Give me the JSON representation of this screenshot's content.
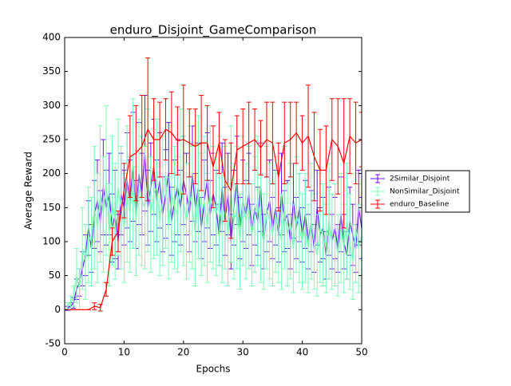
{
  "chart_data": {
    "type": "errorbar-line",
    "title": "enduro_Disjoint_GameComparison",
    "x_label": "Epochs",
    "y_label": "Average Reward",
    "xlim": [
      0,
      50
    ],
    "xticks": [
      0,
      10,
      20,
      30,
      40,
      50
    ],
    "ylim": [
      -50,
      400
    ],
    "yticks": [
      -50,
      0,
      50,
      100,
      150,
      200,
      250,
      300,
      350,
      400
    ],
    "grid": false,
    "legend_position": "right",
    "series": [
      {
        "name": "2Similar_Disjoint",
        "color": "#6a10f0",
        "x": [
          0.5,
          1,
          1.5,
          2,
          2.5,
          3,
          3.5,
          4,
          4.5,
          5,
          5.5,
          6,
          6.5,
          7,
          7.5,
          8,
          8.5,
          9,
          9.5,
          10,
          10.5,
          11,
          11.5,
          12,
          12.5,
          13,
          13.5,
          14,
          14.5,
          15,
          15.5,
          16,
          16.5,
          17,
          17.5,
          18,
          18.5,
          19,
          19.5,
          20,
          20.5,
          21,
          21.5,
          22,
          22.5,
          23,
          23.5,
          24,
          24.5,
          25,
          25.5,
          26,
          26.5,
          27,
          27.5,
          28,
          28.5,
          29,
          29.5,
          30,
          30.5,
          31,
          31.5,
          32,
          32.5,
          33,
          33.5,
          34,
          34.5,
          35,
          35.5,
          36,
          36.5,
          37,
          37.5,
          38,
          38.5,
          39,
          39.5,
          40,
          40.5,
          41,
          41.5,
          42,
          42.5,
          43,
          43.5,
          44,
          44.5,
          45,
          45.5,
          46,
          46.5,
          47,
          47.5,
          48,
          48.5,
          49,
          49.5,
          50
        ],
        "values": [
          2,
          5,
          10,
          30,
          40,
          60,
          80,
          120,
          90,
          140,
          160,
          130,
          180,
          150,
          170,
          120,
          140,
          100,
          170,
          150,
          190,
          160,
          210,
          140,
          200,
          170,
          230,
          150,
          180,
          210,
          160,
          190,
          140,
          170,
          200,
          130,
          160,
          180,
          150,
          190,
          170,
          140,
          200,
          150,
          180,
          120,
          160,
          190,
          140,
          170,
          150,
          110,
          180,
          130,
          170,
          100,
          150,
          190,
          120,
          160,
          140,
          170,
          110,
          150,
          130,
          180,
          100,
          140,
          160,
          120,
          150,
          110,
          170,
          130,
          140,
          100,
          160,
          120,
          150,
          110,
          140,
          100,
          130,
          90,
          150,
          110,
          120,
          80,
          130,
          100,
          120,
          90,
          140,
          100,
          80,
          130,
          110,
          90,
          150,
          120
        ],
        "errors": [
          3,
          5,
          8,
          15,
          20,
          25,
          30,
          40,
          35,
          50,
          60,
          45,
          70,
          55,
          60,
          50,
          65,
          40,
          60,
          55,
          70,
          60,
          80,
          50,
          75,
          60,
          85,
          55,
          65,
          70,
          60,
          70,
          55,
          65,
          75,
          50,
          60,
          70,
          55,
          65,
          60,
          55,
          70,
          50,
          65,
          45,
          60,
          70,
          50,
          60,
          55,
          45,
          65,
          50,
          60,
          40,
          55,
          65,
          45,
          60,
          50,
          60,
          45,
          55,
          50,
          65,
          40,
          55,
          60,
          45,
          55,
          40,
          60,
          45,
          50,
          40,
          55,
          45,
          50,
          40,
          50,
          40,
          45,
          35,
          55,
          40,
          45,
          35,
          50,
          40,
          45,
          35,
          55,
          40,
          35,
          50,
          45,
          35,
          55,
          45
        ]
      },
      {
        "name": "NonSimilar_Disjoint",
        "color": "#7dffb4",
        "x": [
          0.5,
          1,
          1.5,
          2,
          2.5,
          3,
          3.5,
          4,
          4.5,
          5,
          5.5,
          6,
          6.5,
          7,
          7.5,
          8,
          8.5,
          9,
          9.5,
          10,
          10.5,
          11,
          11.5,
          12,
          12.5,
          13,
          13.5,
          14,
          14.5,
          15,
          15.5,
          16,
          16.5,
          17,
          17.5,
          18,
          18.5,
          19,
          19.5,
          20,
          20.5,
          21,
          21.5,
          22,
          22.5,
          23,
          23.5,
          24,
          24.5,
          25,
          25.5,
          26,
          26.5,
          27,
          27.5,
          28,
          28.5,
          29,
          29.5,
          30,
          30.5,
          31,
          31.5,
          32,
          32.5,
          33,
          33.5,
          34,
          34.5,
          35,
          35.5,
          36,
          36.5,
          37,
          37.5,
          38,
          38.5,
          39,
          39.5,
          40,
          40.5,
          41,
          41.5,
          42,
          42.5,
          43,
          43.5,
          44,
          44.5,
          45,
          45.5,
          46,
          46.5,
          47,
          47.5,
          48,
          48.5,
          49,
          49.5,
          50
        ],
        "values": [
          5,
          10,
          20,
          50,
          30,
          90,
          70,
          110,
          100,
          150,
          120,
          170,
          140,
          190,
          110,
          160,
          130,
          180,
          150,
          120,
          170,
          140,
          200,
          130,
          180,
          160,
          150,
          190,
          140,
          170,
          180,
          130,
          160,
          200,
          120,
          170,
          150,
          140,
          190,
          160,
          130,
          170,
          150,
          110,
          180,
          140,
          160,
          120,
          170,
          150,
          140,
          160,
          120,
          150,
          110,
          170,
          130,
          150,
          100,
          160,
          130,
          150,
          110,
          140,
          160,
          120,
          100,
          150,
          130,
          110,
          140,
          120,
          100,
          150,
          110,
          130,
          90,
          140,
          120,
          100,
          120,
          90,
          130,
          100,
          80,
          120,
          110,
          90,
          130,
          100,
          110,
          80,
          120,
          90,
          130,
          100,
          70,
          120,
          90,
          110
        ],
        "errors": [
          5,
          10,
          15,
          40,
          30,
          60,
          55,
          70,
          65,
          90,
          80,
          100,
          85,
          110,
          75,
          95,
          85,
          100,
          90,
          80,
          100,
          85,
          110,
          80,
          100,
          95,
          90,
          105,
          85,
          95,
          100,
          80,
          95,
          110,
          75,
          100,
          90,
          85,
          105,
          95,
          85,
          100,
          90,
          75,
          105,
          90,
          95,
          80,
          100,
          90,
          90,
          95,
          80,
          90,
          75,
          100,
          85,
          90,
          70,
          95,
          85,
          90,
          75,
          85,
          95,
          80,
          70,
          90,
          85,
          75,
          85,
          80,
          70,
          90,
          75,
          85,
          65,
          85,
          80,
          70,
          80,
          65,
          85,
          70,
          60,
          80,
          75,
          65,
          85,
          70,
          75,
          60,
          80,
          65,
          85,
          70,
          55,
          80,
          65,
          75
        ]
      },
      {
        "name": "enduro_Baseline",
        "color": "#ff0000",
        "x": [
          0,
          1,
          2,
          3,
          4,
          5,
          6,
          7,
          8,
          9,
          10,
          11,
          12,
          13,
          14,
          15,
          16,
          17,
          18,
          19,
          20,
          21,
          22,
          23,
          24,
          25,
          26,
          27,
          28,
          29,
          30,
          31,
          32,
          33,
          34,
          35,
          36,
          37,
          38,
          39,
          40,
          41,
          42,
          43,
          44,
          45,
          46,
          47,
          48,
          49,
          50
        ],
        "values": [
          0,
          0,
          0,
          0,
          0,
          5,
          3,
          30,
          100,
          115,
          175,
          225,
          230,
          240,
          265,
          250,
          250,
          265,
          260,
          248,
          250,
          245,
          240,
          245,
          245,
          210,
          245,
          190,
          175,
          235,
          240,
          245,
          250,
          238,
          250,
          245,
          195,
          245,
          250,
          260,
          245,
          255,
          225,
          205,
          205,
          250,
          240,
          215,
          255,
          245,
          250
        ],
        "errors": [
          0,
          0,
          0,
          0,
          0,
          5,
          5,
          10,
          20,
          30,
          40,
          60,
          70,
          75,
          105,
          60,
          55,
          45,
          60,
          50,
          80,
          50,
          55,
          70,
          55,
          60,
          45,
          60,
          70,
          50,
          55,
          60,
          45,
          40,
          55,
          60,
          50,
          60,
          55,
          45,
          40,
          75,
          65,
          60,
          65,
          60,
          70,
          95,
          55,
          60,
          40
        ]
      }
    ]
  }
}
